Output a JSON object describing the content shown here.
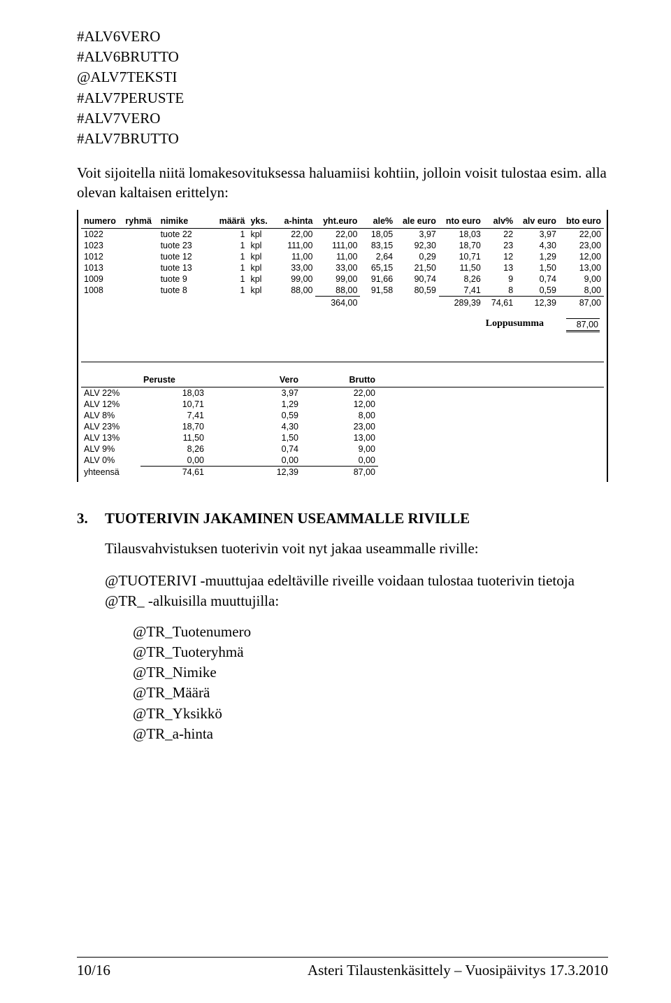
{
  "code_lines": [
    "#ALV6VERO",
    "#ALV6BRUTTO",
    "@ALV7TEKSTI",
    "#ALV7PERUSTE",
    "#ALV7VERO",
    "#ALV7BRUTTO"
  ],
  "paragraph1": "Voit sijoitella niitä lomakesovituksessa haluamiisi kohtiin, jolloin voisit tulostaa esim. alla olevan kaltaisen erittelyn:",
  "table1": {
    "headers": [
      "numero",
      "ryhmä",
      "nimike",
      "määrä",
      "yks.",
      "a-hinta",
      "yht.euro",
      "ale%",
      "ale euro",
      "nto euro",
      "alv%",
      "alv euro",
      "bto euro"
    ],
    "rows": [
      [
        "1022",
        "",
        "tuote 22",
        "1",
        "kpl",
        "22,00",
        "22,00",
        "18,05",
        "3,97",
        "18,03",
        "22",
        "3,97",
        "22,00"
      ],
      [
        "1023",
        "",
        "tuote 23",
        "1",
        "kpl",
        "111,00",
        "111,00",
        "83,15",
        "92,30",
        "18,70",
        "23",
        "4,30",
        "23,00"
      ],
      [
        "1012",
        "",
        "tuote 12",
        "1",
        "kpl",
        "11,00",
        "11,00",
        "2,64",
        "0,29",
        "10,71",
        "12",
        "1,29",
        "12,00"
      ],
      [
        "1013",
        "",
        "tuote 13",
        "1",
        "kpl",
        "33,00",
        "33,00",
        "65,15",
        "21,50",
        "11,50",
        "13",
        "1,50",
        "13,00"
      ],
      [
        "1009",
        "",
        "tuote 9",
        "1",
        "kpl",
        "99,00",
        "99,00",
        "91,66",
        "90,74",
        "8,26",
        "9",
        "0,74",
        "9,00"
      ],
      [
        "1008",
        "",
        "tuote 8",
        "1",
        "kpl",
        "88,00",
        "88,00",
        "91,58",
        "80,59",
        "7,41",
        "8",
        "0,59",
        "8,00"
      ]
    ],
    "totals": {
      "yht": "364,00",
      "nto": "289,39",
      "alv_euro_left": "74,61",
      "alv_euro": "12,39",
      "bto": "87,00"
    },
    "loppusumma_label": "Loppusumma",
    "loppusumma_value": "87,00"
  },
  "table2": {
    "headers": [
      "",
      "Peruste",
      "Vero",
      "Brutto"
    ],
    "rows": [
      [
        "ALV 22%",
        "18,03",
        "3,97",
        "22,00"
      ],
      [
        "ALV 12%",
        "10,71",
        "1,29",
        "12,00"
      ],
      [
        "ALV 8%",
        "7,41",
        "0,59",
        "8,00"
      ],
      [
        "ALV 23%",
        "18,70",
        "4,30",
        "23,00"
      ],
      [
        "ALV 13%",
        "11,50",
        "1,50",
        "13,00"
      ],
      [
        "ALV 9%",
        "8,26",
        "0,74",
        "9,00"
      ],
      [
        "ALV 0%",
        "0,00",
        "0,00",
        "0,00"
      ],
      [
        "yhteensä",
        "74,61",
        "12,39",
        "87,00"
      ]
    ]
  },
  "section3": {
    "number": "3.",
    "title": "TUOTERIVIN JAKAMINEN USEAMMALLE RIVILLE",
    "para": "Tilausvahvistuksen tuoterivin voit nyt jakaa useammalle riville:",
    "para2_a": "@TUOTERIVI -muuttujaa edeltäville riveille voidaan tulostaa tuoterivin tietoja @TR_ -alkuisilla muuttujilla:",
    "vars": [
      "@TR_Tuotenumero",
      "@TR_Tuoteryhmä",
      "@TR_Nimike",
      "@TR_Määrä",
      "@TR_Yksikkö",
      "@TR_a-hinta"
    ]
  },
  "footer": {
    "left": "10/16",
    "right": "Asteri Tilaustenkäsittely – Vuosipäivitys 17.3.2010"
  }
}
